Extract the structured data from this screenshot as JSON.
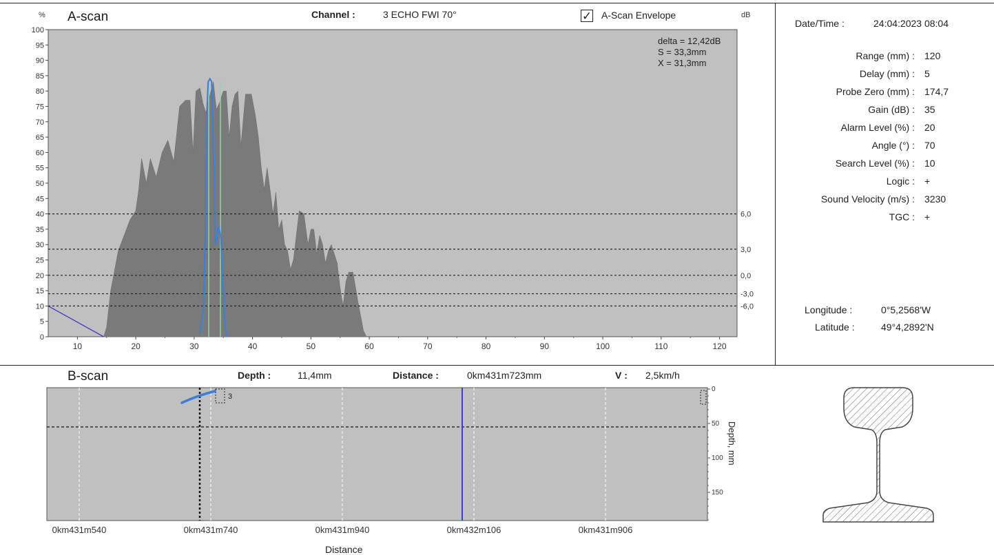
{
  "ascan": {
    "title": "A-scan",
    "y_unit": "%",
    "db_unit": "dB",
    "channel_label": "Channel :",
    "channel_value": "3 ECHO FWI 70°",
    "envelope_label": "A-Scan Envelope",
    "envelope_checked": true,
    "measure": {
      "delta": "delta = 12,42dB",
      "s": "S = 33,3mm",
      "x": "X = 31,3mm"
    },
    "y_ticks": [
      "100",
      "95",
      "90",
      "85",
      "80",
      "75",
      "70",
      "65",
      "60",
      "55",
      "50",
      "45",
      "40",
      "35",
      "30",
      "25",
      "20",
      "15",
      "10",
      "5",
      "0"
    ],
    "x_ticks": [
      "10",
      "20",
      "30",
      "40",
      "50",
      "60",
      "70",
      "80",
      "90",
      "100",
      "110",
      "120"
    ],
    "db_lines": [
      {
        "label": "6,0",
        "level": 40
      },
      {
        "label": "3,0",
        "level": 28.5
      },
      {
        "label": "0,0",
        "level": 20
      },
      {
        "label": "-3,0",
        "level": 14
      },
      {
        "label": "-6,0",
        "level": 10
      }
    ],
    "chart_data": {
      "type": "area",
      "xlim": [
        5,
        123
      ],
      "ylim": [
        0,
        100
      ],
      "envelope": [
        [
          14.5,
          0
        ],
        [
          15,
          3
        ],
        [
          15.7,
          15
        ],
        [
          16.5,
          23
        ],
        [
          17,
          28
        ],
        [
          18,
          33
        ],
        [
          19,
          38
        ],
        [
          20,
          41
        ],
        [
          20.5,
          48
        ],
        [
          21,
          58
        ],
        [
          21.8,
          50
        ],
        [
          22.5,
          58
        ],
        [
          23.5,
          52
        ],
        [
          24.5,
          60
        ],
        [
          25.5,
          64
        ],
        [
          26.5,
          57
        ],
        [
          27.5,
          75
        ],
        [
          28.5,
          77
        ],
        [
          29.3,
          77
        ],
        [
          29.8,
          60
        ],
        [
          30.3,
          80
        ],
        [
          31,
          81
        ],
        [
          31.5,
          76
        ],
        [
          32,
          73
        ],
        [
          32.6,
          78
        ],
        [
          33.3,
          83
        ],
        [
          33.8,
          74
        ],
        [
          34.3,
          76
        ],
        [
          35,
          80
        ],
        [
          35.5,
          80
        ],
        [
          36,
          65
        ],
        [
          36.5,
          75
        ],
        [
          37,
          79
        ],
        [
          37.5,
          80
        ],
        [
          38,
          62
        ],
        [
          38.8,
          79
        ],
        [
          39.8,
          79
        ],
        [
          40.5,
          72
        ],
        [
          41,
          65
        ],
        [
          41.5,
          55
        ],
        [
          42,
          48
        ],
        [
          42.5,
          55
        ],
        [
          43,
          48
        ],
        [
          43.5,
          40
        ],
        [
          44,
          47
        ],
        [
          44.5,
          35
        ],
        [
          45,
          38
        ],
        [
          45.5,
          30
        ],
        [
          46,
          28
        ],
        [
          46.5,
          22
        ],
        [
          47,
          25
        ],
        [
          47.5,
          33
        ],
        [
          48,
          41
        ],
        [
          48.8,
          40
        ],
        [
          49.5,
          30
        ],
        [
          50,
          35
        ],
        [
          50.5,
          35
        ],
        [
          51,
          27
        ],
        [
          51.5,
          33
        ],
        [
          52,
          30
        ],
        [
          52.5,
          24
        ],
        [
          53,
          28
        ],
        [
          53.5,
          30
        ],
        [
          54.5,
          24
        ],
        [
          55,
          16
        ],
        [
          55.5,
          10
        ],
        [
          56,
          18
        ],
        [
          56.5,
          21
        ],
        [
          57.2,
          21
        ],
        [
          58,
          12
        ],
        [
          59,
          2
        ],
        [
          59.5,
          0
        ]
      ],
      "echo": [
        [
          31,
          1
        ],
        [
          31.6,
          10
        ],
        [
          31.9,
          35
        ],
        [
          32.1,
          70
        ],
        [
          32.4,
          83
        ],
        [
          32.7,
          84
        ],
        [
          33,
          83
        ],
        [
          33.3,
          60
        ],
        [
          33.6,
          30
        ],
        [
          33.9,
          33
        ],
        [
          34.2,
          36
        ],
        [
          34.6,
          32
        ],
        [
          34.9,
          15
        ],
        [
          35.3,
          3
        ],
        [
          35.6,
          0
        ]
      ],
      "baseline": [
        [
          5,
          10
        ],
        [
          14.5,
          0
        ]
      ],
      "gate_markers": [
        32.5,
        34.5
      ]
    }
  },
  "bscan": {
    "title": "B-scan",
    "depth_label": "Depth :",
    "depth_value": "11,4mm",
    "distance_label": "Distance :",
    "distance_value": "0km431m723mm",
    "speed_label": "V :",
    "speed_value": "2,5km/h",
    "x_ticks": [
      "0km431m540",
      "0km431m740",
      "0km431m940",
      "0km432m106",
      "0km431m906"
    ],
    "x_axis_title": "Distance",
    "depth_ticks": [
      "0",
      "50",
      "100",
      "150"
    ],
    "depth_axis_title": "Depth, mm",
    "marker_label": "3"
  },
  "info": {
    "datetime_label": "Date/Time :",
    "datetime_value": "24:04:2023 08:04",
    "params": [
      {
        "label": "Range (mm) :",
        "value": "120"
      },
      {
        "label": "Delay (mm) :",
        "value": "5"
      },
      {
        "label": "Probe Zero (mm) :",
        "value": "174,7"
      },
      {
        "label": "Gain (dB) :",
        "value": "35"
      },
      {
        "label": "Alarm Level (%) :",
        "value": "20"
      },
      {
        "label": "Angle (°) :",
        "value": "70"
      },
      {
        "label": "Search Level (%) :",
        "value": "10"
      },
      {
        "label": "Logic :",
        "value": "+"
      },
      {
        "label": "Sound Velocity (m/s) :",
        "value": "3230"
      },
      {
        "label": "TGC :",
        "value": "+"
      }
    ],
    "longitude_label": "Longitude :",
    "longitude_value": "0°5,2568'W",
    "latitude_label": "Latitude :",
    "latitude_value": "49°4,2892'N"
  },
  "colors": {
    "plot_bg": "#c0c0c0",
    "envelope_fill": "#7a7a7a",
    "echo_line": "#3a7fd9",
    "baseline_line": "#3b3bc4",
    "cursor_line": "#3344cc",
    "gate_marker": "#8fd6a0"
  }
}
